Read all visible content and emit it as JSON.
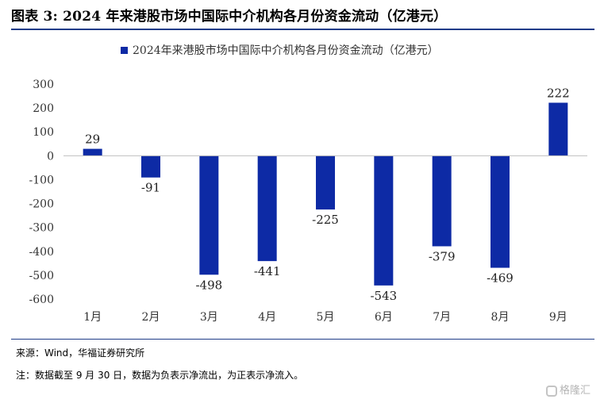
{
  "header": {
    "title": "图表 3: 2024 年来港股市场中国际中介机构各月份资金流动（亿港元）"
  },
  "footer": {
    "source": "来源：Wind，华福证券研究所",
    "note": "注：数据截至 9 月 30 日，数据为负表示净流出，为正表示净流入。"
  },
  "watermark": {
    "text": "格隆汇"
  },
  "chart_data": {
    "type": "bar",
    "title": "",
    "categories": [
      "1月",
      "2月",
      "3月",
      "4月",
      "5月",
      "6月",
      "7月",
      "8月",
      "9月"
    ],
    "series": [
      {
        "name": "2024年来港股市场中国际中介机构各月份资金流动（亿港元）",
        "values": [
          29,
          -91,
          -498,
          -441,
          -225,
          -543,
          -379,
          -469,
          222
        ]
      }
    ],
    "ylim": [
      -600,
      300
    ],
    "yticks": [
      300,
      200,
      100,
      0,
      -100,
      -200,
      -300,
      -400,
      -500,
      -600
    ],
    "xlabel": "",
    "ylabel": "",
    "legend": "top-center",
    "grid": false,
    "colors": {
      "bar": "#0d2aa5",
      "axis": "#bfbfbf"
    }
  }
}
